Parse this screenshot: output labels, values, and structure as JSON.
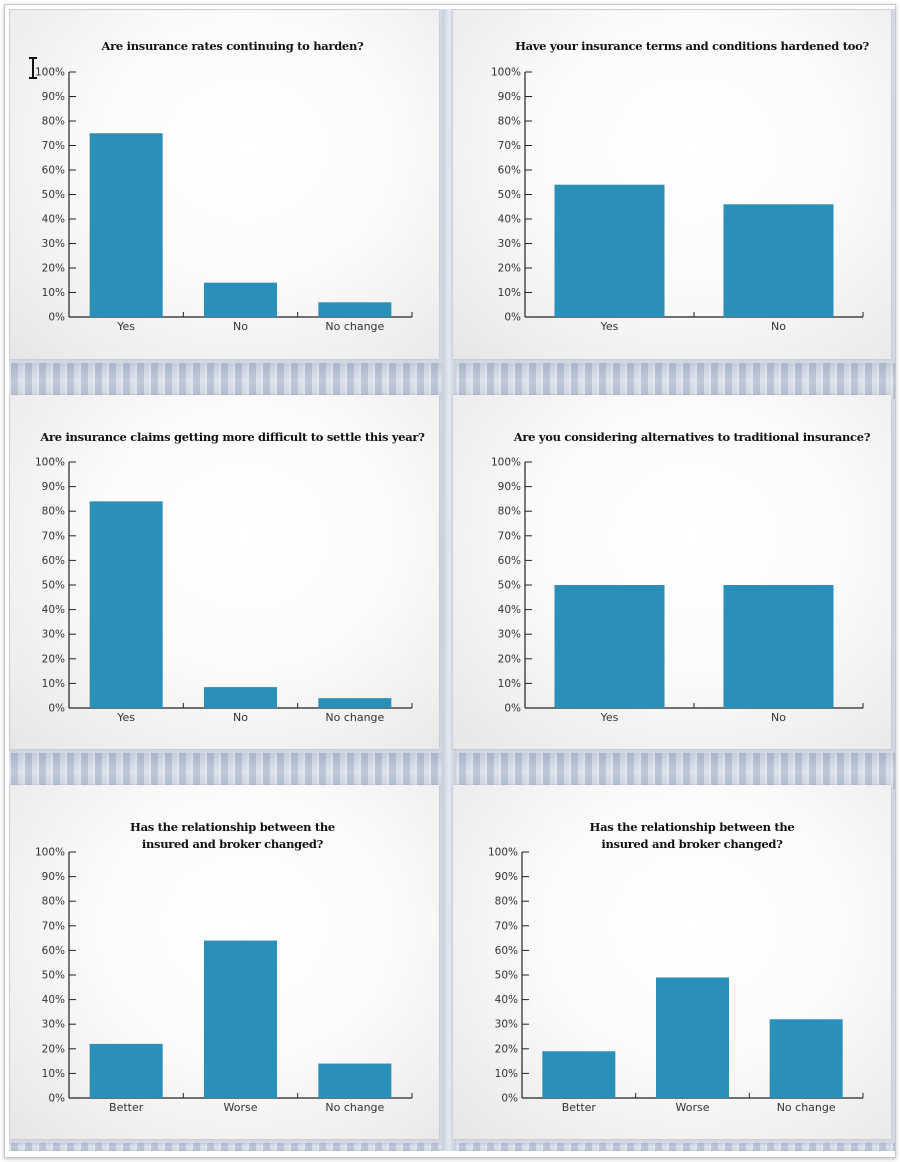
{
  "colors": {
    "bar": "#2a8fb9",
    "axis": "#222222"
  },
  "chart_data": [
    {
      "type": "bar",
      "title": [
        "Are insurance rates continuing to harden?"
      ],
      "categories": [
        "Yes",
        "No",
        "No change"
      ],
      "values": [
        75,
        14,
        6
      ],
      "ylim": [
        0,
        100
      ],
      "yticks": [
        "0%",
        "10%",
        "20%",
        "30%",
        "40%",
        "50%",
        "60%",
        "70%",
        "80%",
        "90%",
        "100%"
      ]
    },
    {
      "type": "bar",
      "title": [
        "Have your insurance terms and conditions hardened too?"
      ],
      "categories": [
        "Yes",
        "No"
      ],
      "values": [
        54,
        46
      ],
      "ylim": [
        0,
        100
      ],
      "yticks": [
        "0%",
        "10%",
        "20%",
        "30%",
        "40%",
        "50%",
        "60%",
        "70%",
        "80%",
        "90%",
        "100%"
      ]
    },
    {
      "type": "bar",
      "title": [
        "Are insurance claims getting more difficult to settle this year?"
      ],
      "categories": [
        "Yes",
        "No",
        "No change"
      ],
      "values": [
        84,
        8.5,
        4
      ],
      "ylim": [
        0,
        100
      ],
      "yticks": [
        "0%",
        "10%",
        "20%",
        "30%",
        "40%",
        "50%",
        "60%",
        "70%",
        "80%",
        "90%",
        "100%"
      ]
    },
    {
      "type": "bar",
      "title": [
        "Are you considering alternatives to traditional insurance?"
      ],
      "categories": [
        "Yes",
        "No"
      ],
      "values": [
        50,
        50
      ],
      "ylim": [
        0,
        100
      ],
      "yticks": [
        "0%",
        "10%",
        "20%",
        "30%",
        "40%",
        "50%",
        "60%",
        "70%",
        "80%",
        "90%",
        "100%"
      ]
    },
    {
      "type": "bar",
      "title": [
        "Has the relationship between the",
        "insured and broker changed?"
      ],
      "categories": [
        "Better",
        "Worse",
        "No change"
      ],
      "values": [
        22,
        64,
        14
      ],
      "ylim": [
        0,
        100
      ],
      "yticks": [
        "0%",
        "10%",
        "20%",
        "30%",
        "40%",
        "50%",
        "60%",
        "70%",
        "80%",
        "90%",
        "100%"
      ]
    },
    {
      "type": "bar",
      "title": [
        "Has the relationship between the",
        "insured and broker changed?"
      ],
      "categories": [
        "Better",
        "Worse",
        "No change"
      ],
      "values": [
        19,
        49,
        32
      ],
      "ylim": [
        0,
        100
      ],
      "yticks": [
        "0%",
        "10%",
        "20%",
        "30%",
        "40%",
        "50%",
        "60%",
        "70%",
        "80%",
        "90%",
        "100%"
      ]
    }
  ]
}
